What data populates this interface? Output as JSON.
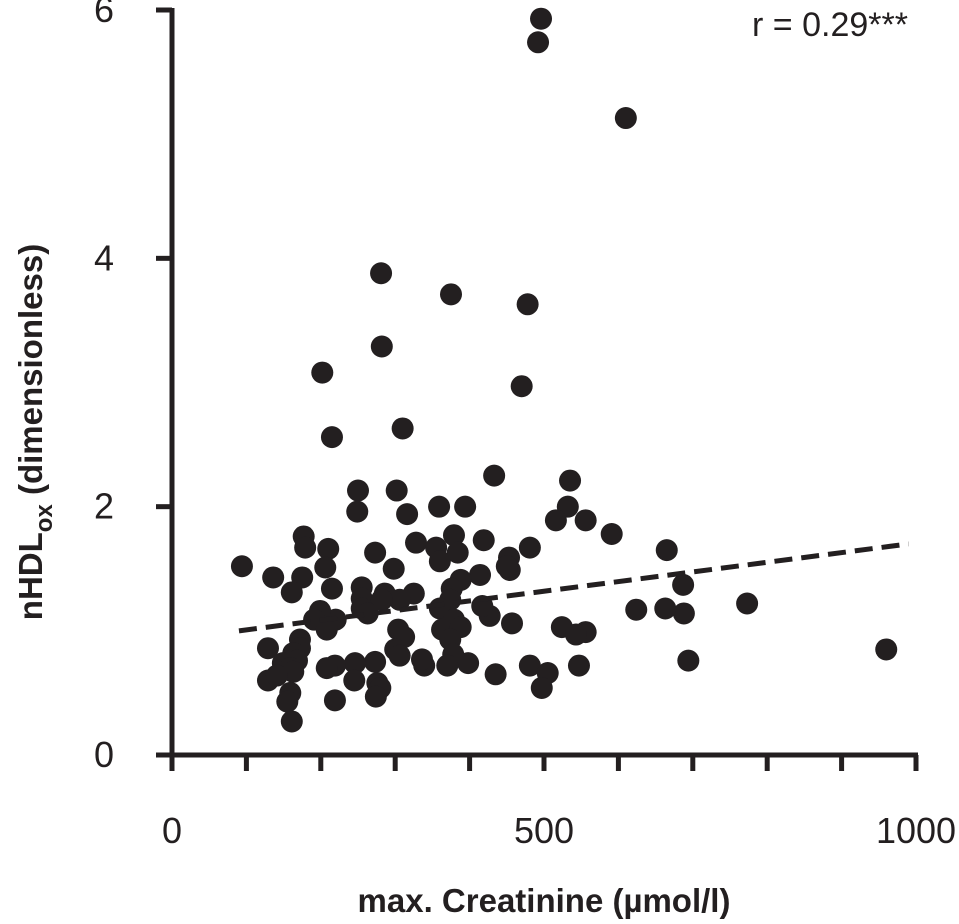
{
  "chart_data": {
    "type": "scatter",
    "xlabel": "max. Creatinine (µmol/l)",
    "ylabel": {
      "main": "nHDL",
      "sub": "ox",
      "rest": " (dimensionless)"
    },
    "annotation": "r = 0.29***",
    "xlim": [
      0,
      1000
    ],
    "ylim": [
      0,
      6
    ],
    "xticks": [
      0,
      500,
      1000
    ],
    "xminorticks": [
      100,
      200,
      300,
      400,
      600,
      700,
      800,
      900
    ],
    "yticks": [
      0,
      2,
      4,
      6
    ],
    "color": "#231f20",
    "x": [
      496,
      492,
      610,
      281,
      375,
      478,
      282,
      202,
      470,
      310,
      215,
      433,
      535,
      250,
      302,
      249,
      359,
      394,
      532,
      316,
      556,
      591,
      177,
      665,
      328,
      516,
      355,
      379,
      453,
      419,
      273,
      94,
      179,
      210,
      481,
      384,
      454,
      360,
      298,
      136,
      450,
      414,
      206,
      175,
      687,
      388,
      215,
      255,
      376,
      286,
      161,
      325,
      255,
      374,
      360,
      306,
      255,
      282,
      773,
      263,
      220,
      199,
      427,
      191,
      379,
      624,
      688,
      663,
      417,
      457,
      524,
      556,
      543,
      208,
      304,
      312,
      363,
      388,
      374,
      172,
      129,
      300,
      172,
      306,
      163,
      168,
      398,
      149,
      273,
      246,
      219,
      159,
      208,
      378,
      339,
      481,
      370,
      547,
      694,
      960,
      505,
      497,
      435,
      276,
      245,
      280,
      129,
      163,
      141,
      159,
      274,
      155,
      219,
      161,
      336
    ],
    "y": [
      5.93,
      5.74,
      5.13,
      3.88,
      3.71,
      3.63,
      3.29,
      3.08,
      2.97,
      2.63,
      2.56,
      2.25,
      2.21,
      2.13,
      2.13,
      1.96,
      2.0,
      2.0,
      2.0,
      1.94,
      1.89,
      1.78,
      1.76,
      1.65,
      1.71,
      1.89,
      1.67,
      1.77,
      1.59,
      1.73,
      1.63,
      1.52,
      1.67,
      1.66,
      1.67,
      1.63,
      1.49,
      1.56,
      1.5,
      1.43,
      1.52,
      1.45,
      1.51,
      1.43,
      1.37,
      1.41,
      1.34,
      1.35,
      1.34,
      1.3,
      1.31,
      1.3,
      1.26,
      1.25,
      1.18,
      1.25,
      1.18,
      1.25,
      1.22,
      1.14,
      1.09,
      1.16,
      1.12,
      1.09,
      1.09,
      1.17,
      1.14,
      1.18,
      1.2,
      1.06,
      1.03,
      0.99,
      0.97,
      1.01,
      1.01,
      0.95,
      1.01,
      1.03,
      0.93,
      0.93,
      0.86,
      0.85,
      0.86,
      0.8,
      0.82,
      0.76,
      0.74,
      0.74,
      0.75,
      0.74,
      0.72,
      0.7,
      0.7,
      0.81,
      0.72,
      0.72,
      0.72,
      0.72,
      0.76,
      0.85,
      0.66,
      0.54,
      0.65,
      0.58,
      0.6,
      0.54,
      0.6,
      0.67,
      0.64,
      0.5,
      0.47,
      0.43,
      0.44,
      0.27,
      0.77
    ],
    "trend": {
      "x": [
        90,
        990
      ],
      "y": [
        1.0,
        1.7
      ]
    }
  }
}
